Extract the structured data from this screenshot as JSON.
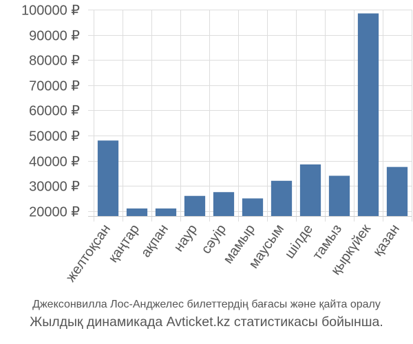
{
  "chart_data": {
    "type": "bar",
    "categories": [
      "желтоқсан",
      "қаңтар",
      "ақпан",
      "наур",
      "сәуір",
      "мамыр",
      "маусым",
      "шілде",
      "тамыз",
      "қыркүйек",
      "қазан"
    ],
    "values": [
      48000,
      21000,
      21000,
      26000,
      27500,
      25000,
      32000,
      38500,
      34000,
      98500,
      37500
    ],
    "yticks": [
      20000,
      30000,
      40000,
      50000,
      60000,
      70000,
      80000,
      90000,
      100000
    ],
    "ytick_labels": [
      "20000 ₽",
      "30000 ₽",
      "40000 ₽",
      "50000 ₽",
      "60000 ₽",
      "70000 ₽",
      "80000 ₽",
      "90000 ₽",
      "100000 ₽"
    ],
    "ylim": [
      18000,
      100000
    ],
    "grid": true,
    "bar_color": "#4a76a8",
    "grid_color": "#dddddd",
    "caption_line1": "Джексонвилла Лос-Анджелес билеттердің бағасы және қайта оралу",
    "caption_line2": "Жылдық динамикада Avticket.kz статистикасы бойынша."
  }
}
